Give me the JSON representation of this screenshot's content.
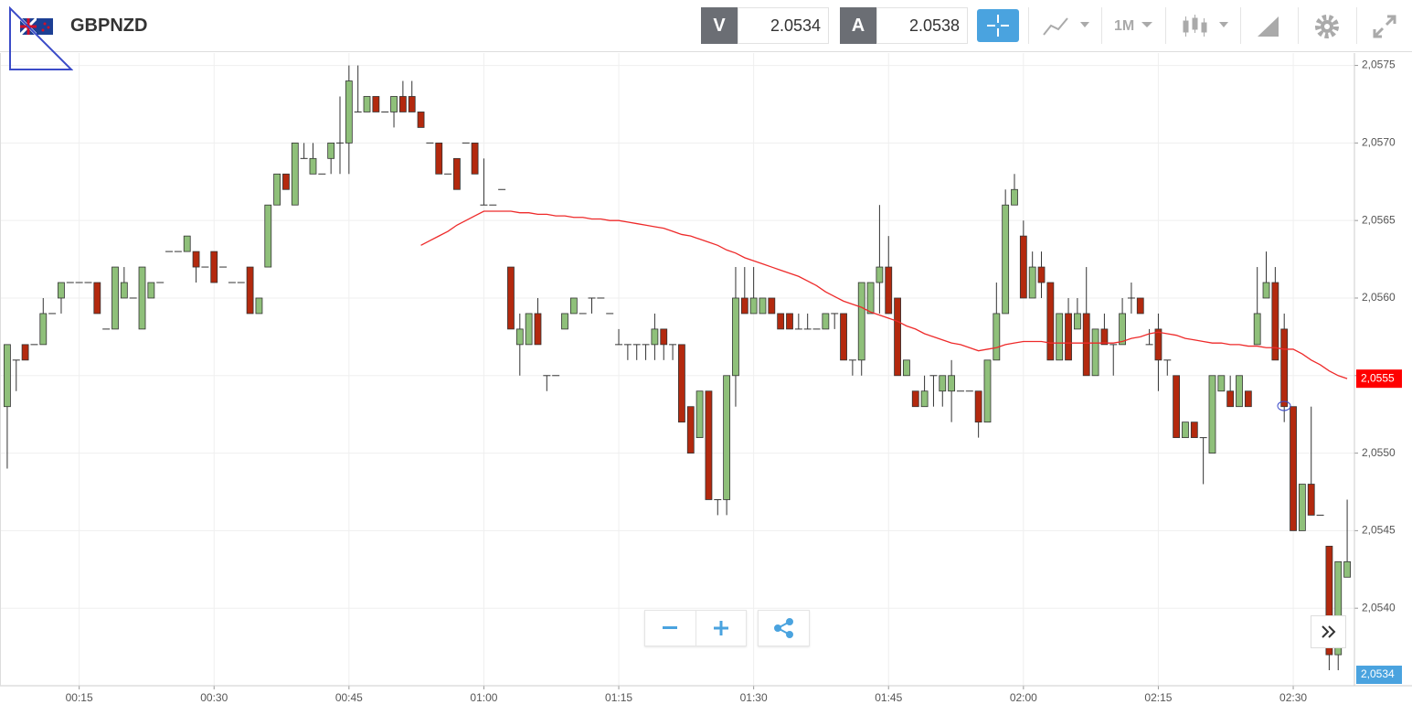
{
  "header": {
    "symbol": "GBPNZD",
    "bid_label": "V",
    "bid": 2.0534,
    "ask_label": "A",
    "ask": 2.0538,
    "timeframe": "1M"
  },
  "chart_data": {
    "type": "candlestick",
    "categories": [
      null,
      null,
      null,
      null,
      null,
      null,
      null,
      null,
      "00:15",
      null,
      null,
      null,
      null,
      null,
      null,
      null,
      null,
      null,
      null,
      null,
      null,
      null,
      null,
      "00:30",
      null,
      null,
      null,
      null,
      null,
      null,
      null,
      null,
      null,
      null,
      null,
      null,
      null,
      null,
      "00:45",
      null,
      null,
      null,
      null,
      null,
      null,
      null,
      null,
      null,
      null,
      null,
      null,
      null,
      null,
      "01:00",
      null,
      null,
      null,
      null,
      null,
      null,
      null,
      null,
      null,
      null,
      null,
      null,
      null,
      null,
      "01:15",
      null,
      null,
      null,
      null,
      null,
      null,
      null,
      null,
      null,
      null,
      null,
      null,
      null,
      null,
      "01:30",
      null,
      null,
      null,
      null,
      null,
      null,
      null,
      null,
      null,
      null,
      null,
      null,
      null,
      null,
      "01:45",
      null,
      null,
      null,
      null,
      null,
      null,
      null,
      null,
      null,
      null,
      null,
      null,
      null,
      null,
      "02:00",
      null,
      null,
      null,
      null,
      null,
      null,
      null,
      null,
      null,
      null,
      null,
      null,
      null,
      null,
      "02:15",
      null,
      null,
      null,
      null,
      null,
      null,
      null,
      null,
      null,
      null,
      null,
      null,
      null,
      null,
      "02:30",
      null,
      null,
      null,
      null,
      null,
      null
    ],
    "open": [
      2.0553,
      2.0556,
      2.0557,
      2.0557,
      2.0557,
      2.0559,
      2.056,
      2.0561,
      2.0561,
      2.0561,
      2.0561,
      2.0558,
      2.0558,
      2.056,
      2.056,
      2.0558,
      2.056,
      2.0561,
      2.0563,
      2.0563,
      2.0563,
      2.0563,
      2.0562,
      2.0563,
      2.0562,
      2.0561,
      2.0561,
      2.0562,
      2.0559,
      2.0562,
      2.0566,
      2.0568,
      2.0566,
      2.0569,
      2.0568,
      2.0568,
      2.0569,
      2.057,
      2.057,
      2.0572,
      2.0572,
      2.0573,
      2.0572,
      2.0572,
      2.0573,
      2.0573,
      2.0572,
      2.057,
      2.057,
      2.0568,
      2.0569,
      2.057,
      2.057,
      2.0566,
      2.0566,
      2.0567,
      2.0562,
      2.0557,
      2.0557,
      2.0559,
      2.0555,
      2.0555,
      2.0558,
      2.0559,
      2.0559,
      2.056,
      2.056,
      2.0559,
      2.0557,
      2.0557,
      2.0557,
      2.0557,
      2.0557,
      2.0558,
      2.0557,
      2.0557,
      2.0553,
      2.0551,
      2.0554,
      2.0547,
      2.0547,
      2.0555,
      2.056,
      2.0559,
      2.0559,
      2.056,
      2.0559,
      2.0559,
      2.0558,
      2.0558,
      2.0558,
      2.0558,
      2.0559,
      2.0559,
      2.0556,
      2.0556,
      2.0559,
      2.0561,
      2.0562,
      2.056,
      2.0555,
      2.0554,
      2.0553,
      2.0555,
      2.0554,
      2.0554,
      2.0554,
      2.0554,
      2.0554,
      2.0552,
      2.0556,
      2.0559,
      2.0566,
      2.0564,
      2.056,
      2.0562,
      2.0561,
      2.0556,
      2.0559,
      2.0558,
      2.0559,
      2.0555,
      2.0558,
      2.0557,
      2.0557,
      2.056,
      2.056,
      2.0557,
      2.0558,
      2.0556,
      2.0555,
      2.0551,
      2.0552,
      2.0551,
      2.055,
      2.0554,
      2.0554,
      2.0553,
      2.0554,
      2.0557,
      2.056,
      2.0561,
      2.0558,
      2.0553,
      2.0545,
      2.0548,
      2.0546,
      2.0544,
      2.0537,
      2.0542
    ],
    "high": [
      2.0557,
      2.0556,
      2.0557,
      2.0557,
      2.056,
      2.0559,
      2.0561,
      2.0561,
      2.0561,
      2.0561,
      2.0561,
      2.0558,
      2.0562,
      2.0562,
      2.056,
      2.0562,
      2.0561,
      2.0561,
      2.0563,
      2.0563,
      2.0564,
      2.0563,
      2.0562,
      2.0563,
      2.0562,
      2.0561,
      2.0561,
      2.0562,
      2.056,
      2.0566,
      2.0568,
      2.0568,
      2.057,
      2.057,
      2.057,
      2.0568,
      2.057,
      2.0573,
      2.0575,
      2.0575,
      2.0573,
      2.0573,
      2.0572,
      2.0573,
      2.0574,
      2.0574,
      2.0572,
      2.057,
      2.057,
      2.0568,
      2.0569,
      2.057,
      2.057,
      2.0569,
      2.0566,
      2.0567,
      2.0562,
      2.0559,
      2.0559,
      2.056,
      2.0555,
      2.0555,
      2.0559,
      2.056,
      2.0559,
      2.056,
      2.056,
      2.0559,
      2.0558,
      2.0557,
      2.0557,
      2.0557,
      2.0559,
      2.0558,
      2.0557,
      2.0557,
      2.0553,
      2.0554,
      2.0554,
      2.0547,
      2.0555,
      2.0562,
      2.0562,
      2.0562,
      2.056,
      2.056,
      2.0559,
      2.0559,
      2.0559,
      2.0559,
      2.0558,
      2.0559,
      2.0559,
      2.0559,
      2.0556,
      2.0561,
      2.0561,
      2.0566,
      2.0564,
      2.056,
      2.0556,
      2.0554,
      2.0555,
      2.0555,
      2.0555,
      2.0556,
      2.0554,
      2.0554,
      2.0554,
      2.0556,
      2.0561,
      2.0567,
      2.0568,
      2.0565,
      2.0563,
      2.0563,
      2.0561,
      2.0559,
      2.056,
      2.056,
      2.0562,
      2.0558,
      2.0559,
      2.0557,
      2.056,
      2.0561,
      2.056,
      2.0558,
      2.0559,
      2.0556,
      2.0555,
      2.0552,
      2.0552,
      2.0551,
      2.0555,
      2.0555,
      2.0555,
      2.0555,
      2.0554,
      2.0562,
      2.0563,
      2.0562,
      2.0559,
      2.0553,
      2.0548,
      2.0553,
      2.0546,
      2.0544,
      2.0543,
      2.0547
    ],
    "low": [
      2.0549,
      2.0554,
      2.0556,
      2.0557,
      2.0557,
      2.0559,
      2.0559,
      2.0561,
      2.0561,
      2.0561,
      2.0559,
      2.0558,
      2.0558,
      2.056,
      2.056,
      2.0558,
      2.056,
      2.0561,
      2.0563,
      2.0563,
      2.0563,
      2.0561,
      2.0562,
      2.0561,
      2.0562,
      2.0561,
      2.0561,
      2.0559,
      2.0559,
      2.0562,
      2.0566,
      2.0567,
      2.0566,
      2.0569,
      2.0568,
      2.0568,
      2.0568,
      2.0568,
      2.0568,
      2.0572,
      2.0572,
      2.0572,
      2.0572,
      2.0571,
      2.0572,
      2.0572,
      2.0571,
      2.057,
      2.0568,
      2.0568,
      2.0567,
      2.057,
      2.0568,
      2.0566,
      2.0566,
      2.0567,
      2.0558,
      2.0555,
      2.0557,
      2.0557,
      2.0554,
      2.0555,
      2.0558,
      2.0559,
      2.0559,
      2.0559,
      2.056,
      2.0559,
      2.0557,
      2.0556,
      2.0556,
      2.0556,
      2.0556,
      2.0556,
      2.0556,
      2.0552,
      2.055,
      2.0551,
      2.0547,
      2.0546,
      2.0546,
      2.0553,
      2.0559,
      2.0559,
      2.0559,
      2.0559,
      2.0558,
      2.0558,
      2.0558,
      2.0558,
      2.0558,
      2.0558,
      2.0558,
      2.0556,
      2.0555,
      2.0555,
      2.0559,
      2.0559,
      2.0559,
      2.0555,
      2.0555,
      2.0553,
      2.0553,
      2.0553,
      2.0553,
      2.0552,
      2.0554,
      2.0554,
      2.0551,
      2.0552,
      2.0556,
      2.0559,
      2.0566,
      2.056,
      2.056,
      2.056,
      2.0556,
      2.0556,
      2.0556,
      2.0558,
      2.0555,
      2.0555,
      2.0557,
      2.0555,
      2.0557,
      2.0559,
      2.0559,
      2.0557,
      2.0554,
      2.0555,
      2.0551,
      2.0551,
      2.0551,
      2.0548,
      2.055,
      2.0554,
      2.0553,
      2.0553,
      2.0553,
      2.0557,
      2.056,
      2.0556,
      2.0552,
      2.0545,
      2.0545,
      2.0546,
      2.0546,
      2.0536,
      2.0536,
      2.0542
    ],
    "close": [
      2.0557,
      2.0556,
      2.0556,
      2.0557,
      2.0559,
      2.0559,
      2.0561,
      2.0561,
      2.0561,
      2.0561,
      2.0559,
      2.0558,
      2.0562,
      2.0561,
      2.056,
      2.0562,
      2.0561,
      2.0561,
      2.0563,
      2.0563,
      2.0564,
      2.0562,
      2.0562,
      2.0561,
      2.0562,
      2.0561,
      2.0561,
      2.0559,
      2.056,
      2.0566,
      2.0568,
      2.0567,
      2.057,
      2.0569,
      2.0569,
      2.0568,
      2.057,
      2.057,
      2.0574,
      2.0572,
      2.0573,
      2.0572,
      2.0572,
      2.0573,
      2.0572,
      2.0572,
      2.0571,
      2.057,
      2.0568,
      2.0568,
      2.0567,
      2.057,
      2.0568,
      2.0566,
      2.0566,
      2.0567,
      2.0558,
      2.0558,
      2.0559,
      2.0557,
      2.0555,
      2.0555,
      2.0559,
      2.056,
      2.0559,
      2.056,
      2.056,
      2.0559,
      2.0557,
      2.0557,
      2.0557,
      2.0557,
      2.0558,
      2.0557,
      2.0557,
      2.0552,
      2.055,
      2.0554,
      2.0547,
      2.0547,
      2.0555,
      2.056,
      2.0559,
      2.056,
      2.056,
      2.0559,
      2.0558,
      2.0558,
      2.0558,
      2.0558,
      2.0558,
      2.0559,
      2.0559,
      2.0556,
      2.0556,
      2.0561,
      2.0561,
      2.0562,
      2.0559,
      2.0555,
      2.0556,
      2.0553,
      2.0554,
      2.0555,
      2.0555,
      2.0555,
      2.0554,
      2.0554,
      2.0552,
      2.0556,
      2.0559,
      2.0566,
      2.0567,
      2.056,
      2.0562,
      2.0561,
      2.0556,
      2.0559,
      2.0556,
      2.0559,
      2.0555,
      2.0558,
      2.0557,
      2.0557,
      2.0559,
      2.056,
      2.0559,
      2.0557,
      2.0556,
      2.0556,
      2.0551,
      2.0552,
      2.0551,
      2.0551,
      2.0555,
      2.0555,
      2.0553,
      2.0555,
      2.0553,
      2.0559,
      2.0561,
      2.0556,
      2.0553,
      2.0545,
      2.0548,
      2.0546,
      2.0546,
      2.0537,
      2.0543,
      2.0543
    ],
    "up_color": "#8fc07a",
    "down_color": "#b3290e",
    "overlay": {
      "type": "line",
      "color": "#ee2a2a",
      "values": [
        null,
        null,
        null,
        null,
        null,
        null,
        null,
        null,
        null,
        null,
        null,
        null,
        null,
        null,
        null,
        null,
        null,
        null,
        null,
        null,
        null,
        null,
        null,
        null,
        null,
        null,
        null,
        null,
        null,
        null,
        null,
        null,
        null,
        null,
        null,
        null,
        null,
        null,
        null,
        null,
        null,
        null,
        null,
        null,
        null,
        null,
        2.05634,
        2.05637,
        2.0564,
        2.05643,
        2.05647,
        2.0565,
        2.05653,
        2.05656,
        2.05656,
        2.05656,
        2.05656,
        2.05655,
        2.05655,
        2.05654,
        2.05654,
        2.05653,
        2.05653,
        2.05652,
        2.05652,
        2.05651,
        2.05651,
        2.0565,
        2.0565,
        2.05649,
        2.05648,
        2.05647,
        2.05646,
        2.05645,
        2.05643,
        2.05641,
        2.0564,
        2.05638,
        2.05636,
        2.05634,
        2.05631,
        2.05629,
        2.05626,
        2.05624,
        2.05622,
        2.0562,
        2.05618,
        2.05616,
        2.05614,
        2.05611,
        2.05608,
        2.05604,
        2.05601,
        2.05598,
        2.05596,
        2.05594,
        2.05591,
        2.05589,
        2.05587,
        2.05585,
        2.05582,
        2.0558,
        2.05577,
        2.05575,
        2.05573,
        2.05571,
        2.0557,
        2.05568,
        2.05566,
        2.05567,
        2.05568,
        2.0557,
        2.05571,
        2.05572,
        2.05572,
        2.05572,
        2.05571,
        2.05571,
        2.05571,
        2.05571,
        2.05571,
        2.05571,
        2.05571,
        2.05571,
        2.05572,
        2.05574,
        2.05575,
        2.05577,
        2.05578,
        2.05577,
        2.05576,
        2.05574,
        2.05573,
        2.05572,
        2.05571,
        2.05571,
        2.0557,
        2.0557,
        2.05569,
        2.05569,
        2.05568,
        2.05568,
        2.05567,
        2.05567,
        2.05564,
        2.0556,
        2.05557,
        2.05553,
        2.0555,
        2.05548
      ]
    },
    "price_tags": [
      {
        "value": 2.05548,
        "label": "2,0555",
        "color": "#ff0000"
      },
      {
        "value": 2.0534,
        "label": "2,0534",
        "color": "#4aa3df"
      }
    ],
    "ylim": [
      2.0535,
      2.05758
    ],
    "yticks": [
      {
        "value": 2.054,
        "label": "2,0540"
      },
      {
        "value": 2.0545,
        "label": "2,0545"
      },
      {
        "value": 2.055,
        "label": "2,0550"
      },
      {
        "value": 2.0555,
        "label": "2,0555"
      },
      {
        "value": 2.056,
        "label": "2,0560"
      },
      {
        "value": 2.0565,
        "label": "2,0565"
      },
      {
        "value": 2.057,
        "label": "2,0570"
      },
      {
        "value": 2.0575,
        "label": "2,0575"
      }
    ],
    "grid": true
  }
}
